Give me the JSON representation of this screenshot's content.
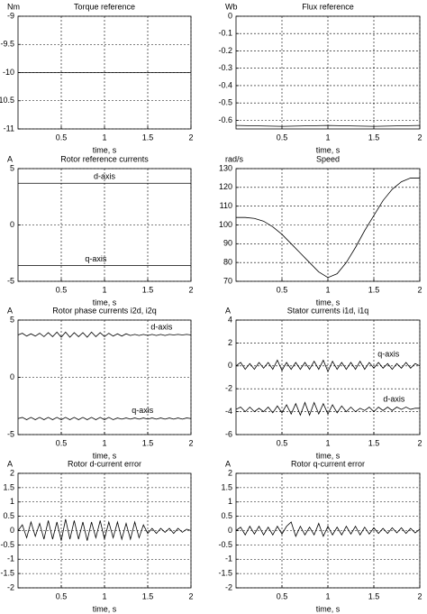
{
  "chart_data": [
    {
      "type": "line",
      "title": "Torque reference",
      "unit": "Nm",
      "xlabel": "time, s",
      "grid": true,
      "xlim": [
        0,
        2
      ],
      "xticks": [
        0.5,
        1,
        1.5,
        2
      ],
      "ylim": [
        -11,
        -9
      ],
      "yticks": [
        -11,
        -10.5,
        -10,
        -9.5,
        -9
      ],
      "x": [
        0,
        2
      ],
      "series": [
        {
          "color": "#000000",
          "values": [
            -10,
            -10
          ]
        }
      ]
    },
    {
      "type": "line",
      "title": "Flux reference",
      "unit": "Wb",
      "xlabel": "time, s",
      "grid": true,
      "xlim": [
        0,
        2
      ],
      "xticks": [
        0.5,
        1,
        1.5,
        2
      ],
      "ylim": [
        -0.65,
        0
      ],
      "yticks": [
        -0.6,
        -0.5,
        -0.4,
        -0.3,
        -0.2,
        -0.1,
        0
      ],
      "x": [
        0,
        0.5,
        1,
        1.5,
        2
      ],
      "series": [
        {
          "color": "#000000",
          "values": [
            -0.63,
            -0.635,
            -0.63,
            -0.635,
            -0.63
          ]
        }
      ]
    },
    {
      "type": "line",
      "title": "Rotor reference currents",
      "unit": "A",
      "xlabel": "time, s",
      "grid": true,
      "xlim": [
        0,
        2
      ],
      "xticks": [
        0.5,
        1,
        1.5,
        2
      ],
      "ylim": [
        -5,
        5
      ],
      "yticks": [
        -5,
        0,
        5
      ],
      "x": [
        0,
        2
      ],
      "series": [
        {
          "name": "d-axis",
          "color": "#000000",
          "values": [
            3.7,
            3.7
          ]
        },
        {
          "name": "q-axis",
          "color": "#000000",
          "values": [
            -3.6,
            -3.6
          ]
        }
      ]
    },
    {
      "type": "line",
      "title": "Speed",
      "unit": "rad/s",
      "xlabel": "time, s",
      "grid": true,
      "xlim": [
        0,
        2
      ],
      "xticks": [
        0.5,
        1,
        1.5,
        2
      ],
      "ylim": [
        70,
        130
      ],
      "yticks": [
        70,
        80,
        90,
        100,
        110,
        120,
        130
      ],
      "x": [
        0,
        0.1,
        0.2,
        0.3,
        0.4,
        0.5,
        0.6,
        0.7,
        0.8,
        0.9,
        1,
        1.1,
        1.2,
        1.3,
        1.4,
        1.5,
        1.6,
        1.7,
        1.8,
        1.9,
        2
      ],
      "series": [
        {
          "color": "#000000",
          "values": [
            104,
            104,
            103.5,
            102,
            99,
            95,
            90,
            85,
            80,
            75,
            72,
            74,
            80,
            88,
            97,
            105,
            113,
            119,
            123,
            125,
            125
          ]
        }
      ]
    },
    {
      "type": "line",
      "title": "Rotor phase currents i2d, i2q",
      "unit": "A",
      "xlabel": "time, s",
      "grid": true,
      "xlim": [
        0,
        2
      ],
      "xticks": [
        0.5,
        1,
        1.5,
        2
      ],
      "ylim": [
        -5,
        5
      ],
      "yticks": [
        -5,
        0,
        5
      ],
      "x": [
        0,
        0.05,
        0.1,
        0.15,
        0.2,
        0.25,
        0.3,
        0.35,
        0.4,
        0.45,
        0.5,
        0.55,
        0.6,
        0.65,
        0.7,
        0.75,
        0.8,
        0.85,
        0.9,
        0.95,
        1,
        1.05,
        1.1,
        1.15,
        1.2,
        1.25,
        1.3,
        1.35,
        1.4,
        1.45,
        1.5,
        1.55,
        1.6,
        1.65,
        1.7,
        1.75,
        1.8,
        1.85,
        1.9,
        1.95,
        2
      ],
      "series": [
        {
          "name": "d-axis",
          "color": "#000000",
          "values": [
            3.7,
            3.85,
            3.6,
            3.8,
            3.6,
            3.85,
            3.55,
            3.9,
            3.55,
            3.95,
            3.5,
            3.95,
            3.5,
            3.9,
            3.55,
            3.9,
            3.5,
            3.95,
            3.55,
            3.9,
            3.55,
            3.85,
            3.6,
            3.8,
            3.6,
            3.8,
            3.65,
            3.75,
            3.65,
            3.75,
            3.65,
            3.75,
            3.65,
            3.75,
            3.65,
            3.75,
            3.7,
            3.75,
            3.7,
            3.75,
            3.7
          ]
        },
        {
          "name": "q-axis",
          "color": "#000000",
          "values": [
            -3.6,
            -3.5,
            -3.7,
            -3.5,
            -3.7,
            -3.5,
            -3.7,
            -3.5,
            -3.7,
            -3.5,
            -3.7,
            -3.5,
            -3.7,
            -3.5,
            -3.7,
            -3.5,
            -3.7,
            -3.5,
            -3.7,
            -3.5,
            -3.7,
            -3.5,
            -3.7,
            -3.55,
            -3.65,
            -3.55,
            -3.65,
            -3.55,
            -3.65,
            -3.55,
            -3.65,
            -3.55,
            -3.65,
            -3.55,
            -3.65,
            -3.55,
            -3.65,
            -3.55,
            -3.65,
            -3.55,
            -3.6
          ]
        }
      ]
    },
    {
      "type": "line",
      "title": "Stator currents i1d, i1q",
      "unit": "A",
      "xlabel": "time, s",
      "grid": true,
      "xlim": [
        0,
        2
      ],
      "xticks": [
        0.5,
        1,
        1.5,
        2
      ],
      "ylim": [
        -6,
        4
      ],
      "yticks": [
        -6,
        -4,
        -2,
        0,
        2,
        4
      ],
      "x": [
        0,
        0.05,
        0.1,
        0.15,
        0.2,
        0.25,
        0.3,
        0.35,
        0.4,
        0.45,
        0.5,
        0.55,
        0.6,
        0.65,
        0.7,
        0.75,
        0.8,
        0.85,
        0.9,
        0.95,
        1,
        1.05,
        1.1,
        1.15,
        1.2,
        1.25,
        1.3,
        1.35,
        1.4,
        1.45,
        1.5,
        1.55,
        1.6,
        1.65,
        1.7,
        1.75,
        1.8,
        1.85,
        1.9,
        1.95,
        2
      ],
      "series": [
        {
          "name": "q-axis",
          "color": "#000000",
          "values": [
            0,
            0.3,
            -0.3,
            0.2,
            -0.3,
            0.3,
            -0.2,
            0.3,
            -0.3,
            0.5,
            -0.4,
            0.3,
            -0.3,
            0.3,
            -0.3,
            0.3,
            -0.3,
            0.4,
            -0.3,
            0.5,
            -0.5,
            0.4,
            -0.3,
            0.3,
            -0.3,
            0.3,
            -0.3,
            0.4,
            -0.3,
            0.3,
            -0.2,
            0.3,
            -0.2,
            0.2,
            -0.3,
            0.2,
            -0.2,
            0.3,
            -0.2,
            0.2,
            0
          ]
        },
        {
          "name": "d-axis",
          "color": "#000000",
          "values": [
            -3.8,
            -3.6,
            -4,
            -3.6,
            -4,
            -3.7,
            -4,
            -3.6,
            -4.1,
            -3.5,
            -4.1,
            -3.4,
            -4.2,
            -3.3,
            -4.3,
            -3.2,
            -4.3,
            -3.2,
            -4.2,
            -3.3,
            -4.2,
            -3.4,
            -4.1,
            -3.5,
            -4,
            -3.6,
            -4,
            -3.7,
            -3.9,
            -3.6,
            -4,
            -3.6,
            -3.9,
            -3.6,
            -3.9,
            -3.6,
            -3.8,
            -3.6,
            -3.8,
            -3.7,
            -3.7
          ]
        }
      ]
    },
    {
      "type": "line",
      "title": "Rotor d-current error",
      "unit": "A",
      "xlabel": "time, s",
      "grid": true,
      "xlim": [
        0,
        2
      ],
      "xticks": [
        0.5,
        1,
        1.5,
        2
      ],
      "ylim": [
        -2,
        2
      ],
      "yticks": [
        -2,
        -1.5,
        -1,
        -0.5,
        0,
        0.5,
        1,
        1.5,
        2
      ],
      "x": [
        0,
        0.05,
        0.1,
        0.15,
        0.2,
        0.25,
        0.3,
        0.35,
        0.4,
        0.45,
        0.5,
        0.55,
        0.6,
        0.65,
        0.7,
        0.75,
        0.8,
        0.85,
        0.9,
        0.95,
        1,
        1.05,
        1.1,
        1.15,
        1.2,
        1.25,
        1.3,
        1.35,
        1.4,
        1.45,
        1.5,
        1.55,
        1.6,
        1.65,
        1.7,
        1.75,
        1.8,
        1.85,
        1.9,
        1.95,
        2
      ],
      "series": [
        {
          "color": "#000000",
          "values": [
            0,
            0.2,
            -0.25,
            0.3,
            -0.2,
            0.25,
            -0.3,
            0.35,
            -0.3,
            0.3,
            -0.35,
            0.4,
            -0.3,
            0.35,
            -0.3,
            0.3,
            -0.35,
            0.3,
            -0.25,
            0.35,
            -0.3,
            0.3,
            -0.25,
            0.3,
            -0.3,
            0.25,
            -0.3,
            0.3,
            -0.25,
            0.2,
            -0.1,
            0.08,
            -0.1,
            0.08,
            -0.06,
            0.08,
            -0.1,
            0.08,
            -0.06,
            0.05,
            0
          ]
        }
      ]
    },
    {
      "type": "line",
      "title": "Rotor q-current error",
      "unit": "A",
      "xlabel": "time, s",
      "grid": true,
      "xlim": [
        0,
        2
      ],
      "xticks": [
        0.5,
        1,
        1.5,
        2
      ],
      "ylim": [
        -2,
        2
      ],
      "yticks": [
        -2,
        -1.5,
        -1,
        -0.5,
        0,
        0.5,
        1,
        1.5,
        2
      ],
      "x": [
        0,
        0.05,
        0.1,
        0.15,
        0.2,
        0.25,
        0.3,
        0.35,
        0.4,
        0.45,
        0.5,
        0.55,
        0.6,
        0.65,
        0.7,
        0.75,
        0.8,
        0.85,
        0.9,
        0.95,
        1,
        1.05,
        1.1,
        1.15,
        1.2,
        1.25,
        1.3,
        1.35,
        1.4,
        1.45,
        1.5,
        1.55,
        1.6,
        1.65,
        1.7,
        1.75,
        1.8,
        1.85,
        1.9,
        1.95,
        2
      ],
      "series": [
        {
          "color": "#000000",
          "values": [
            0,
            0.12,
            -0.15,
            0.15,
            -0.12,
            0.15,
            -0.15,
            0.12,
            -0.15,
            0.15,
            -0.12,
            0.15,
            0.3,
            -0.2,
            0.15,
            -0.15,
            0.12,
            -0.15,
            0.25,
            -0.2,
            0.15,
            -0.15,
            0.12,
            -0.15,
            0.15,
            -0.12,
            0.15,
            -0.15,
            0.12,
            -0.12,
            0.1,
            -0.1,
            0.08,
            -0.1,
            0.1,
            -0.08,
            0.1,
            -0.1,
            0.08,
            -0.08,
            0.05
          ]
        }
      ]
    }
  ]
}
